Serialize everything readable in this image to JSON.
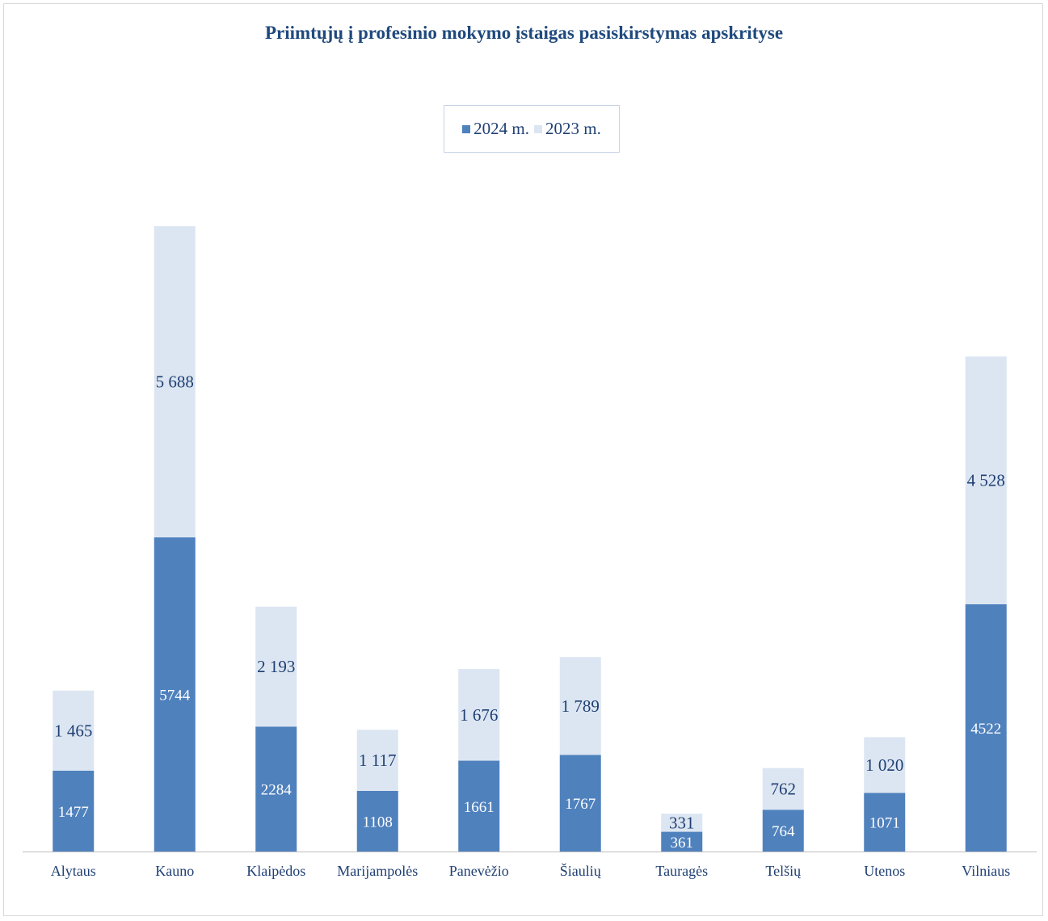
{
  "chart_data": {
    "type": "bar",
    "stacked": true,
    "title": "Priimtųjų į profesinio mokymo įstaigas pasiskirstymas apskrityse",
    "categories": [
      "Alytaus",
      "Kauno",
      "Klaipėdos",
      "Marijampolės",
      "Panevėžio",
      "Šiaulių",
      "Tauragės",
      "Telšių",
      "Utenos",
      "Vilniaus"
    ],
    "series": [
      {
        "name": "2024 m.",
        "color": "#4f81bd",
        "values": [
          1477,
          5744,
          2284,
          1108,
          1661,
          1767,
          361,
          764,
          1071,
          4522
        ],
        "labels": [
          "1477",
          "5744",
          "2284",
          "1108",
          "1661",
          "1767",
          "361",
          "764",
          "1071",
          "4522"
        ]
      },
      {
        "name": "2023 m.",
        "color": "#dce6f2",
        "values": [
          1465,
          5688,
          2193,
          1117,
          1676,
          1789,
          331,
          762,
          1020,
          4528
        ],
        "labels": [
          "1 465",
          "5 688",
          "2 193",
          "1 117",
          "1 676",
          "1 789",
          "331",
          "762",
          "1 020",
          "4 528"
        ]
      }
    ],
    "legend_position": "top",
    "grid": false,
    "xlabel": "",
    "ylabel": "",
    "ylim": [
      0,
      11432
    ]
  }
}
